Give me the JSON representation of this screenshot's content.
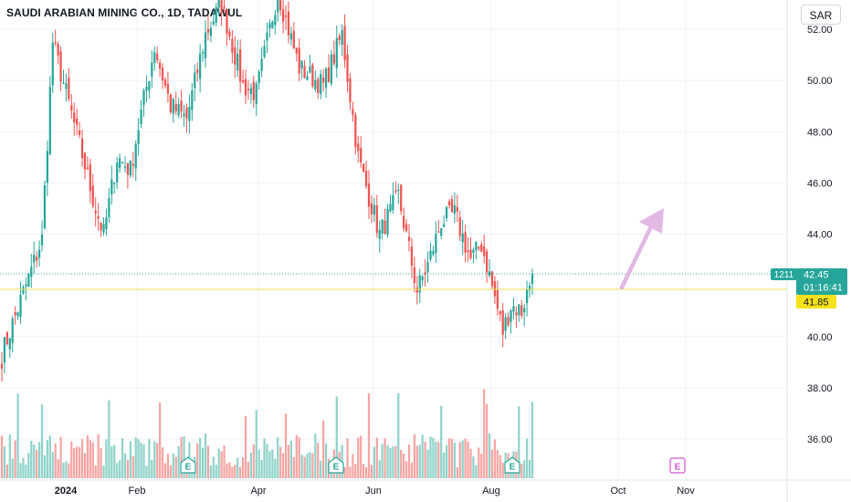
{
  "header": {
    "title": "SAUDI ARABIAN MINING CO., 1D, TADAWUL",
    "currency": "SAR"
  },
  "price_axis": {
    "ticks": [
      "52.00",
      "50.00",
      "48.00",
      "46.00",
      "44.00",
      "40.00",
      "38.00",
      "36.00"
    ]
  },
  "time_axis": {
    "ticks": [
      "2024",
      "Feb",
      "Apr",
      "Jun",
      "Aug",
      "Oct",
      "Nov"
    ]
  },
  "labels": {
    "volume_tag": "1211",
    "last_price": "42.45",
    "countdown": "01:16:41",
    "level_price": "41.85",
    "earnings_letter": "E"
  },
  "colors": {
    "up": "#26a69a",
    "down": "#ef5350",
    "vol_up": "#8fd3ca",
    "vol_down": "#f5a5a3",
    "level_line": "#f2e24a",
    "level_badge": "#f5e21b",
    "arrow": "#e2b8e4",
    "future_earnings": "#d253d8"
  },
  "chart_data": {
    "type": "candlestick",
    "title": "SAUDI ARABIAN MINING CO., 1D, TADAWUL",
    "y_range": [
      34.8,
      52.6
    ],
    "last_price": 42.45,
    "horizontal_level": 41.85,
    "projection_arrow": {
      "from": [
        "late Sep",
        41.9
      ],
      "to": [
        "mid Oct",
        45.0
      ]
    },
    "earnings_markers": [
      "Feb",
      "May",
      "Aug",
      "Oct (upcoming)"
    ],
    "segments": [
      {
        "points": 2,
        "from": 38.8,
        "to": 39.6
      },
      {
        "points": 14,
        "from": 39.6,
        "to": 43.8
      },
      {
        "points": 4,
        "from": 43.8,
        "to": 51.5
      },
      {
        "points": 10,
        "from": 51.5,
        "to": 47.5
      },
      {
        "points": 6,
        "from": 47.5,
        "to": 45.0
      },
      {
        "points": 3,
        "from": 45.0,
        "to": 44.0
      },
      {
        "points": 5,
        "from": 44.0,
        "to": 47.0
      },
      {
        "points": 5,
        "from": 47.0,
        "to": 46.5
      },
      {
        "points": 3,
        "from": 46.5,
        "to": 48.2
      },
      {
        "points": 6,
        "from": 48.2,
        "to": 51.3
      },
      {
        "points": 6,
        "from": 51.3,
        "to": 49.0
      },
      {
        "points": 6,
        "from": 49.0,
        "to": 48.5
      },
      {
        "points": 7,
        "from": 48.5,
        "to": 51.8
      },
      {
        "points": 6,
        "from": 51.8,
        "to": 53.0
      },
      {
        "points": 8,
        "from": 53.0,
        "to": 49.8
      },
      {
        "points": 5,
        "from": 49.8,
        "to": 49.5
      },
      {
        "points": 8,
        "from": 49.5,
        "to": 53.5
      },
      {
        "points": 8,
        "from": 53.5,
        "to": 50.5
      },
      {
        "points": 9,
        "from": 50.5,
        "to": 49.8
      },
      {
        "points": 7,
        "from": 49.8,
        "to": 51.8
      },
      {
        "points": 6,
        "from": 51.8,
        "to": 47.0
      },
      {
        "points": 8,
        "from": 47.0,
        "to": 44.0
      },
      {
        "points": 7,
        "from": 44.0,
        "to": 45.5
      },
      {
        "points": 7,
        "from": 45.5,
        "to": 41.8
      },
      {
        "points": 4,
        "from": 41.8,
        "to": 42.8
      },
      {
        "points": 5,
        "from": 42.8,
        "to": 44.5
      },
      {
        "points": 5,
        "from": 44.5,
        "to": 44.8
      },
      {
        "points": 6,
        "from": 44.8,
        "to": 43.0
      },
      {
        "points": 4,
        "from": 43.0,
        "to": 43.6
      },
      {
        "points": 3,
        "from": 43.6,
        "to": 42.4
      },
      {
        "points": 5,
        "from": 42.4,
        "to": 40.2
      },
      {
        "points": 3,
        "from": 40.2,
        "to": 41.2
      },
      {
        "points": 4,
        "from": 41.2,
        "to": 41.0
      },
      {
        "points": 4,
        "from": 41.0,
        "to": 42.4
      }
    ]
  }
}
